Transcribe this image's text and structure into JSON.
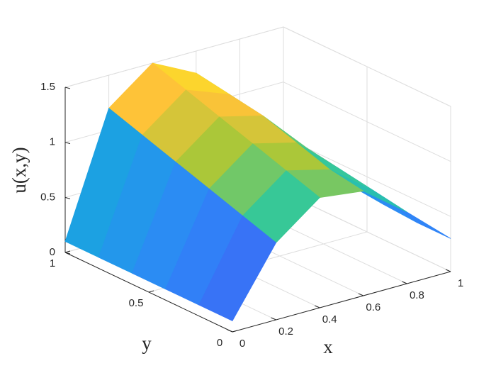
{
  "chart_data": {
    "type": "surface",
    "xlabel": "x",
    "ylabel": "y",
    "zlabel": "u(x,y)",
    "x": [
      0,
      0.2,
      0.4,
      0.6,
      0.8,
      1
    ],
    "y": [
      0,
      0.2,
      0.4,
      0.6,
      0.8,
      1
    ],
    "z": [
      [
        0.1,
        0.7,
        1.0,
        0.95,
        0.65,
        0.3
      ],
      [
        0.1,
        0.8,
        1.1,
        1.0,
        0.7,
        0.3
      ],
      [
        0.1,
        0.9,
        1.2,
        1.1,
        0.75,
        0.32
      ],
      [
        0.1,
        1.0,
        1.3,
        1.2,
        0.8,
        0.35
      ],
      [
        0.1,
        1.1,
        1.4,
        1.25,
        0.85,
        0.38
      ],
      [
        0.1,
        1.2,
        1.5,
        1.3,
        0.9,
        0.4
      ]
    ],
    "xlim": [
      0,
      1
    ],
    "ylim": [
      0,
      1
    ],
    "zlim": [
      0,
      1.5
    ],
    "xticks": [
      0,
      0.2,
      0.4,
      0.6,
      0.8,
      1
    ],
    "yticks": [
      0,
      0.5,
      1
    ],
    "zticks": [
      0,
      0.5,
      1,
      1.5
    ],
    "grid": true,
    "colormap": "parula"
  }
}
